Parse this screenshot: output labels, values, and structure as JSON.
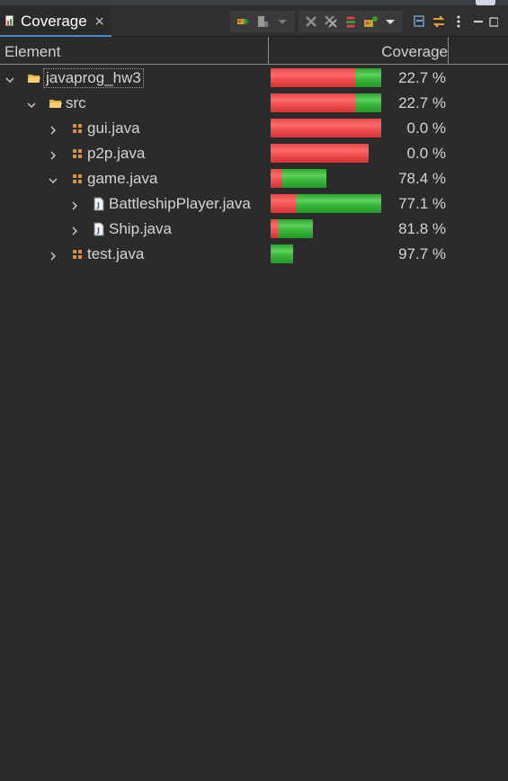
{
  "view": {
    "tab_label": "Coverage",
    "close_glyph": "×",
    "icons": {
      "tab": "coverage-view-icon",
      "toolbar": [
        "relaunch-icon",
        "dump-execution-data-icon",
        "dropdown-arrow-icon",
        "remove-session-icon",
        "remove-all-sessions-icon",
        "merge-sessions-icon",
        "select-session-icon",
        "dropdown-arrow-icon",
        "collapse-all-icon",
        "link-with-editor-icon",
        "view-menu-icon",
        "minimize-icon",
        "maximize-icon"
      ]
    }
  },
  "columns": {
    "element": "Element",
    "coverage": "Coverage"
  },
  "rows": [
    {
      "label": "javaprog_hw3",
      "pct": "22.7 %",
      "expanded": true,
      "level": 0,
      "kind": "project",
      "covered": 0.227
    },
    {
      "label": "src",
      "pct": "22.7 %",
      "expanded": true,
      "level": 1,
      "kind": "folder",
      "covered": 0.227
    },
    {
      "label": "gui.java",
      "pct": "0.0 %",
      "expanded": false,
      "level": 2,
      "kind": "package",
      "covered": 0.0
    },
    {
      "label": "p2p.java",
      "pct": "0.0 %",
      "expanded": false,
      "level": 2,
      "kind": "package",
      "covered": 0.0
    },
    {
      "label": "game.java",
      "pct": "78.4 %",
      "expanded": true,
      "level": 2,
      "kind": "package",
      "covered": 0.784
    },
    {
      "label": "BattleshipPlayer.java",
      "pct": "77.1 %",
      "expanded": false,
      "level": 3,
      "kind": "file",
      "covered": 0.771
    },
    {
      "label": "Ship.java",
      "pct": "81.8 %",
      "expanded": false,
      "level": 3,
      "kind": "file",
      "covered": 0.818
    },
    {
      "label": "test.java",
      "pct": "97.7 %",
      "expanded": false,
      "level": 2,
      "kind": "package",
      "covered": 0.977
    }
  ],
  "colors": {
    "covered": "#3cbc3c",
    "missed": "#f25454"
  }
}
